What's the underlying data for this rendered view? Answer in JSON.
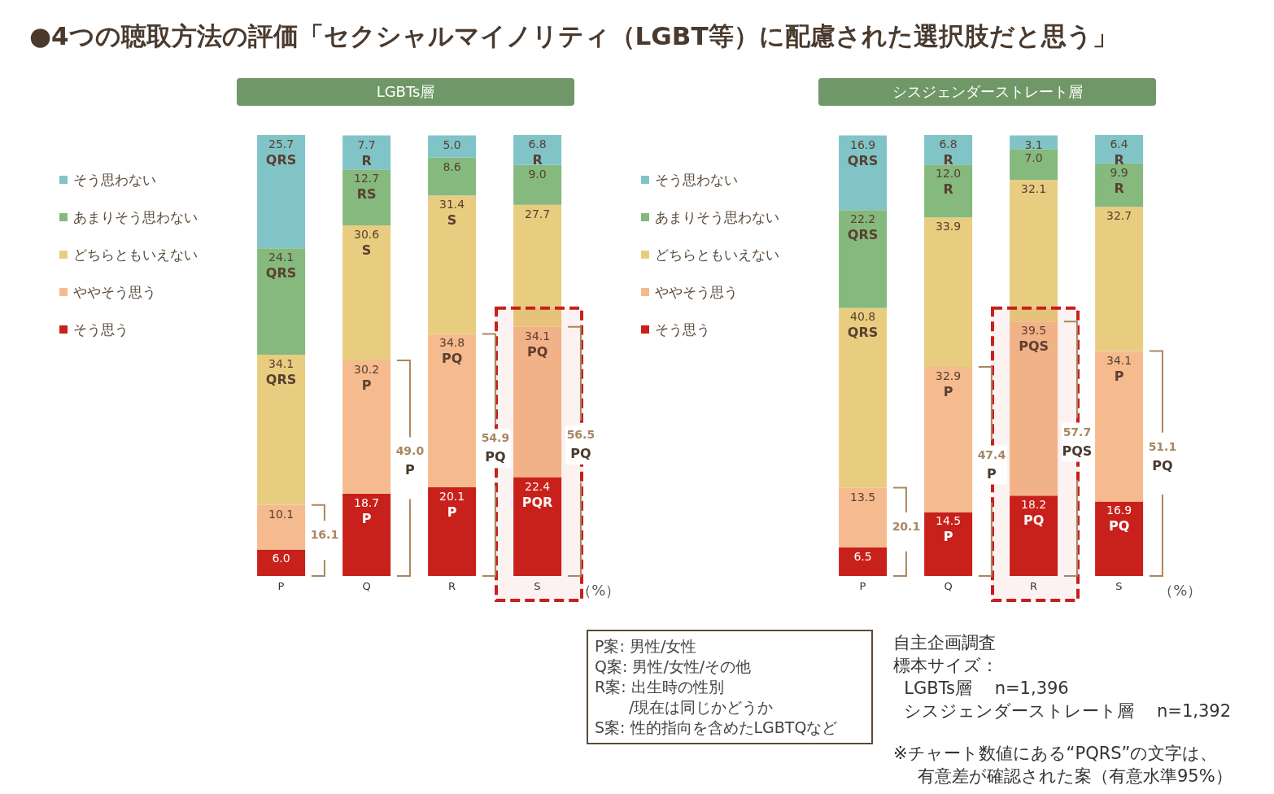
{
  "chart_data": [
    {
      "type": "bar",
      "title": "●4つの聴取方法の評価「セクシャルマイノリティ（LGBT等）に配慮された選択肢だと思う」",
      "subtitle": "LGBTs層",
      "ylabel": "（%）",
      "categories": [
        "P",
        "Q",
        "R",
        "S"
      ],
      "stacked": true,
      "ylim": [
        0,
        100
      ],
      "tick_labels": "x",
      "legend": "left",
      "series": [
        {
          "name": "そう思う",
          "color": "#c8201a",
          "values": [
            6.0,
            18.7,
            20.1,
            22.4
          ],
          "value_labels": [
            "6.0",
            "18.7\nP",
            "20.1\nP",
            "22.4\nPQR"
          ]
        },
        {
          "name": "ややそう思う",
          "color": "#f5bb8e",
          "values": [
            10.1,
            30.2,
            34.8,
            34.1
          ],
          "value_labels": [
            "10.1",
            "30.2\nP",
            "34.8\nPQ",
            "34.1\nPQ"
          ]
        },
        {
          "name": "どちらともいえない",
          "color": "#e8cd80",
          "values": [
            34.1,
            30.6,
            31.4,
            27.7
          ],
          "value_labels": [
            "34.1\nQRS",
            "30.6\nS",
            "31.4\nS",
            "27.7"
          ]
        },
        {
          "name": "あまりそう思わない",
          "color": "#85b97e",
          "values": [
            24.1,
            12.7,
            8.6,
            9.0
          ],
          "value_labels": [
            "24.1\nQRS",
            "12.7\nRS",
            "8.6",
            "9.0"
          ]
        },
        {
          "name": "そう思わない",
          "color": "#80c4c8",
          "values": [
            25.7,
            7.7,
            5.0,
            6.8
          ],
          "value_labels": [
            "25.7\nQRS",
            "7.7\nR",
            "5.0",
            "6.8\nR"
          ]
        }
      ],
      "bands": [
        {
          "axis": "x",
          "from": "S",
          "to": "S",
          "color": "#c8201a"
        }
      ],
      "annotations": [
        "16.1",
        "49.0\nP",
        "54.9\nPQ",
        "56.5\nPQ"
      ]
    },
    {
      "type": "bar",
      "subtitle": "シスジェンダーストレート層",
      "ylabel": "（%）",
      "categories": [
        "P",
        "Q",
        "R",
        "S"
      ],
      "stacked": true,
      "ylim": [
        0,
        100
      ],
      "tick_labels": "x",
      "legend": "left",
      "series": [
        {
          "name": "そう思う",
          "color": "#c8201a",
          "values": [
            6.5,
            14.5,
            18.2,
            16.9
          ],
          "value_labels": [
            "6.5",
            "14.5\nP",
            "18.2\nPQ",
            "16.9\nPQ"
          ]
        },
        {
          "name": "ややそう思う",
          "color": "#f5bb8e",
          "values": [
            13.5,
            32.9,
            39.5,
            34.1
          ],
          "value_labels": [
            "13.5",
            "32.9\nP",
            "39.5\nPQS",
            "34.1\nP"
          ]
        },
        {
          "name": "どちらともいえない",
          "color": "#e8cd80",
          "values": [
            40.8,
            33.9,
            32.1,
            32.7
          ],
          "value_labels": [
            "40.8\nQRS",
            "33.9",
            "32.1",
            "32.7"
          ]
        },
        {
          "name": "あまりそう思わない",
          "color": "#85b97e",
          "values": [
            22.2,
            12.0,
            7.0,
            9.9
          ],
          "value_labels": [
            "22.2\nQRS",
            "12.0\nR",
            "7.0",
            "9.9\nR"
          ]
        },
        {
          "name": "そう思わない",
          "color": "#80c4c8",
          "values": [
            16.9,
            6.8,
            3.1,
            6.4
          ],
          "value_labels": [
            "16.9\nQRS",
            "6.8\nR",
            "3.1",
            "6.4\nR"
          ]
        }
      ],
      "bands": [
        {
          "axis": "x",
          "from": "R",
          "to": "R",
          "color": "#c8201a"
        }
      ],
      "annotations": [
        "20.1",
        "47.4\nP",
        "57.7\nPQS",
        "51.1\nPQ",
        "P案: 男性/女性",
        "Q案: 男性/女性/その他",
        "R案: 出生時の性別",
        "/現在は同じかどうか",
        "S案: 性的指向を含めたLGBTQなど",
        "自主企画調査",
        "標本サイズ：",
        "  LGBTs層　 n=1,396",
        "  シスジェンダーストレート層　 n=1,392",
        "※チャート数値にある“PQRS”の文字は、",
        "有意差が確認された案（有意水準95%）"
      ]
    }
  ]
}
